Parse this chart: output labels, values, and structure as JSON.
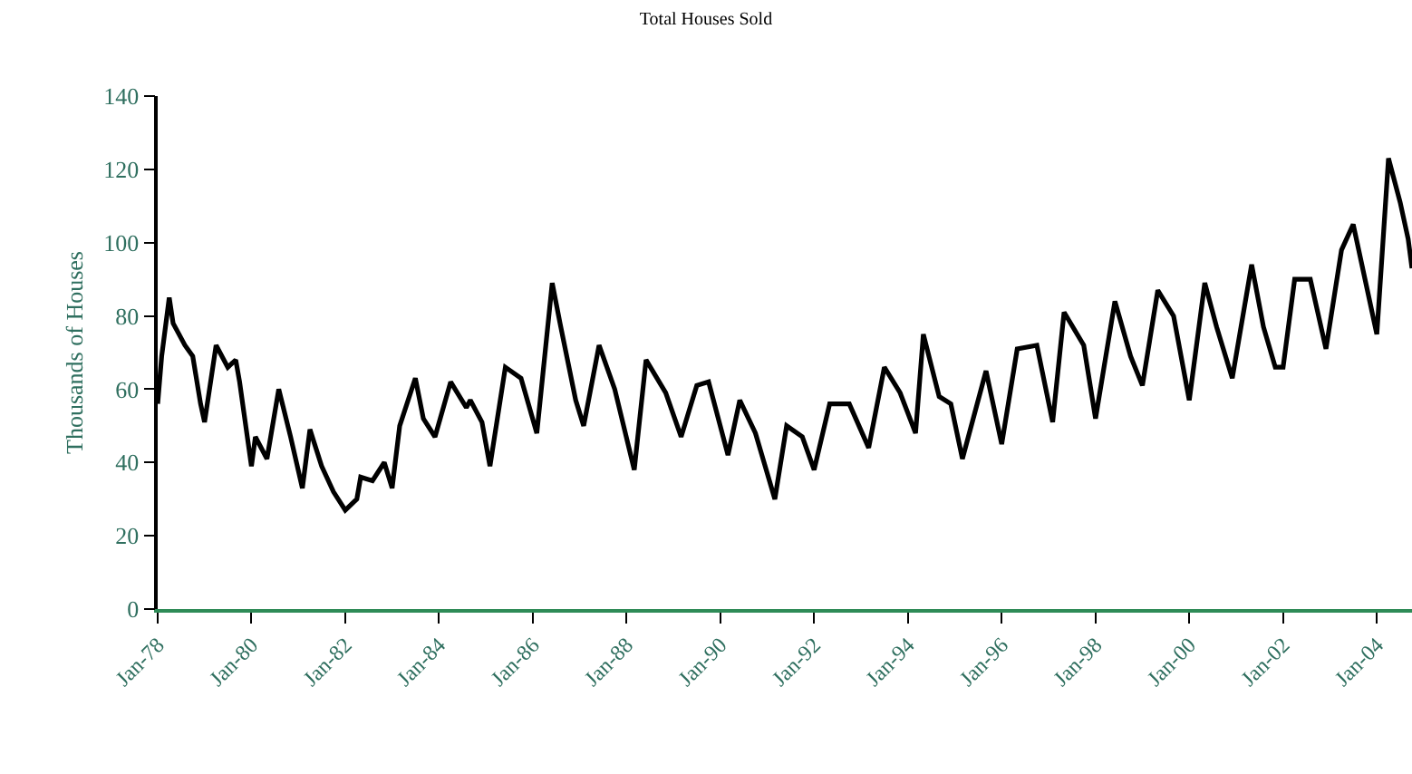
{
  "chart_data": {
    "type": "line",
    "title": "Total Houses Sold",
    "ylabel": "Thousands of Houses",
    "x": [
      "1978-01",
      "1978-02",
      "1978-04",
      "1978-05",
      "1978-08",
      "1978-10",
      "1978-12",
      "1979-01",
      "1979-04",
      "1979-07",
      "1979-09",
      "1979-10",
      "1980-01",
      "1980-02",
      "1980-05",
      "1980-08",
      "1980-11",
      "1981-02",
      "1981-04",
      "1981-07",
      "1981-10",
      "1982-01",
      "1982-04",
      "1982-05",
      "1982-08",
      "1982-11",
      "1983-01",
      "1983-03",
      "1983-07",
      "1983-09",
      "1983-12",
      "1984-04",
      "1984-08",
      "1984-09",
      "1984-12",
      "1985-02",
      "1985-06",
      "1985-10",
      "1986-02",
      "1986-06",
      "1986-08",
      "1986-12",
      "1987-02",
      "1987-06",
      "1987-10",
      "1988-03",
      "1988-06",
      "1988-11",
      "1989-03",
      "1989-07",
      "1989-10",
      "1990-03",
      "1990-06",
      "1990-10",
      "1991-03",
      "1991-06",
      "1991-10",
      "1992-01",
      "1992-05",
      "1992-10",
      "1993-03",
      "1993-07",
      "1993-11",
      "1994-03",
      "1994-05",
      "1994-09",
      "1994-12",
      "1995-03",
      "1995-09",
      "1996-01",
      "1996-05",
      "1996-10",
      "1997-02",
      "1997-05",
      "1997-10",
      "1998-01",
      "1998-06",
      "1998-10",
      "1999-01",
      "1999-05",
      "1999-09",
      "2000-01",
      "2000-05",
      "2000-08",
      "2000-12",
      "2001-05",
      "2001-08",
      "2001-11",
      "2002-01",
      "2002-04",
      "2002-08",
      "2002-12",
      "2003-04",
      "2003-07",
      "2003-10",
      "2004-01",
      "2004-04",
      "2004-07",
      "2004-09",
      "2004-10"
    ],
    "series": [
      {
        "color": "#000000",
        "values": [
          56,
          69,
          85,
          78,
          72,
          69,
          56,
          51,
          72,
          66,
          68,
          62,
          39,
          47,
          41,
          60,
          47,
          33,
          49,
          39,
          32,
          27,
          30,
          36,
          35,
          40,
          33,
          50,
          63,
          52,
          47,
          62,
          55,
          57,
          51,
          39,
          66,
          63,
          48,
          89,
          78,
          57,
          50,
          72,
          60,
          38,
          68,
          59,
          47,
          61,
          62,
          42,
          57,
          48,
          30,
          50,
          47,
          38,
          56,
          56,
          44,
          66,
          59,
          48,
          75,
          58,
          56,
          41,
          65,
          45,
          71,
          72,
          51,
          81,
          72,
          52,
          84,
          69,
          61,
          87,
          80,
          57,
          89,
          77,
          63,
          94,
          77,
          66,
          66,
          90,
          90,
          71,
          98,
          105,
          90,
          75,
          123,
          111,
          101,
          93
        ]
      }
    ],
    "xlim": [
      "1978-01",
      "2004-10"
    ],
    "xticks": [
      {
        "value": "1978-01",
        "label": "Jan-78"
      },
      {
        "value": "1980-01",
        "label": "Jan-80"
      },
      {
        "value": "1982-01",
        "label": "Jan-82"
      },
      {
        "value": "1984-01",
        "label": "Jan-84"
      },
      {
        "value": "1986-01",
        "label": "Jan-86"
      },
      {
        "value": "1988-01",
        "label": "Jan-88"
      },
      {
        "value": "1990-01",
        "label": "Jan-90"
      },
      {
        "value": "1992-01",
        "label": "Jan-92"
      },
      {
        "value": "1994-01",
        "label": "Jan-94"
      },
      {
        "value": "1996-01",
        "label": "Jan-96"
      },
      {
        "value": "1998-01",
        "label": "Jan-98"
      },
      {
        "value": "2000-01",
        "label": "Jan-00"
      },
      {
        "value": "2002-01",
        "label": "Jan-02"
      },
      {
        "value": "2004-01",
        "label": "Jan-04"
      }
    ],
    "ylim": [
      0,
      140
    ],
    "yticks": [
      0,
      20,
      40,
      60,
      80,
      100,
      120,
      140
    ],
    "marker": "none",
    "line_style": "solid"
  }
}
